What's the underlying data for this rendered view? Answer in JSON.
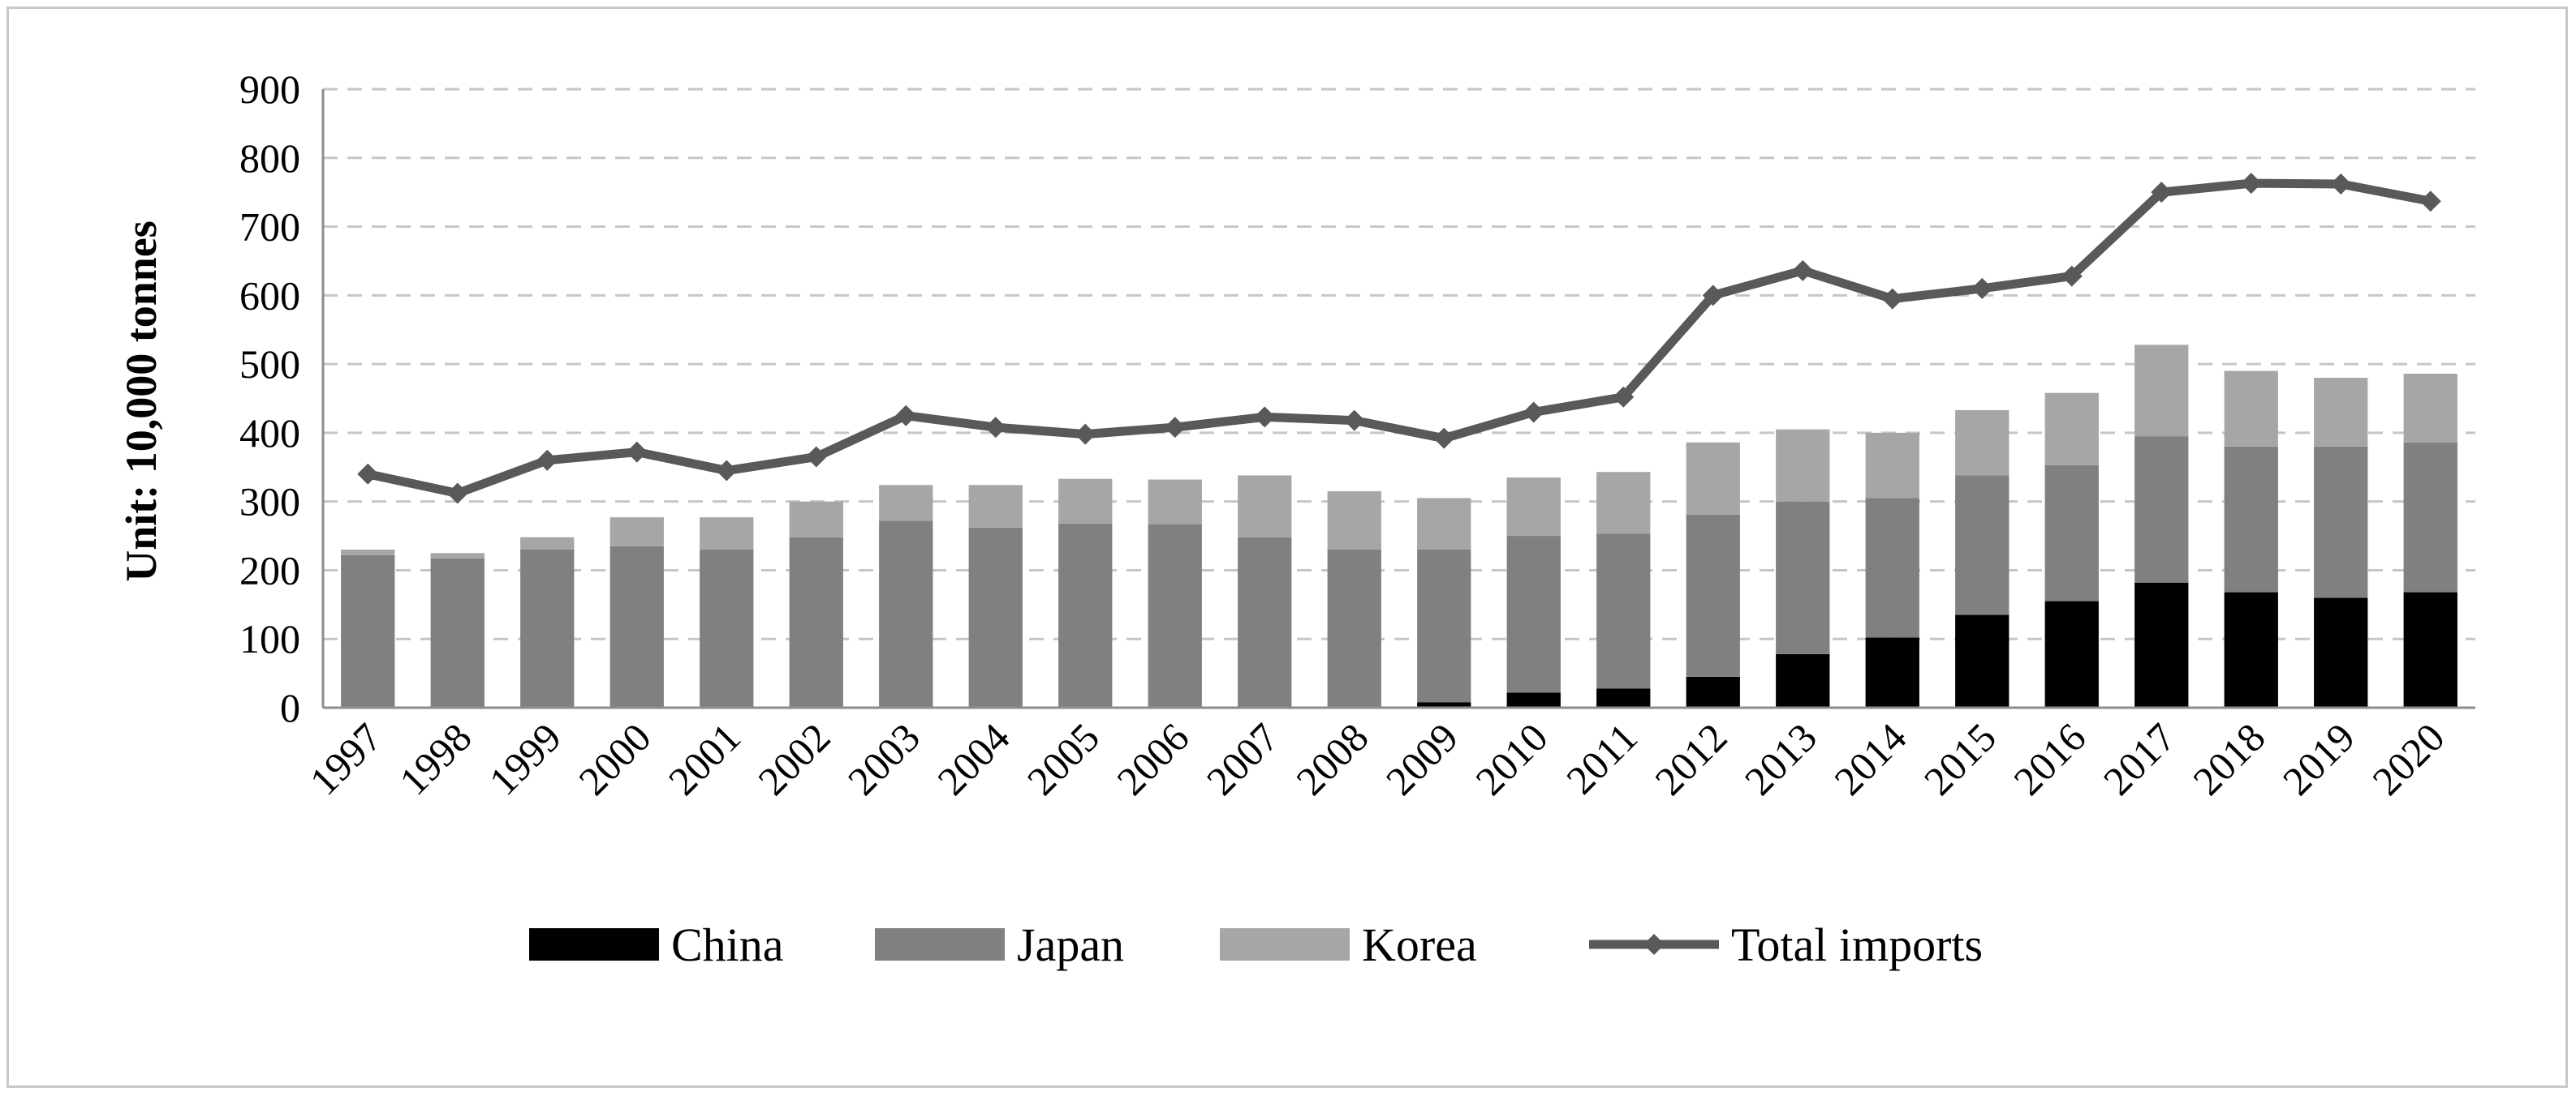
{
  "chart_data": {
    "type": "bar",
    "stacked": true,
    "categories": [
      "1997",
      "1998",
      "1999",
      "2000",
      "2001",
      "2002",
      "2003",
      "2004",
      "2005",
      "2006",
      "2007",
      "2008",
      "2009",
      "2010",
      "2011",
      "2012",
      "2013",
      "2014",
      "2015",
      "2016",
      "2017",
      "2018",
      "2019",
      "2020"
    ],
    "series": [
      {
        "name": "China",
        "kind": "bar",
        "color": "#000000",
        "values": [
          0,
          0,
          0,
          0,
          0,
          0,
          0,
          0,
          0,
          0,
          0,
          0,
          8,
          22,
          28,
          45,
          78,
          102,
          135,
          155,
          182,
          168,
          160,
          168
        ]
      },
      {
        "name": "Japan",
        "kind": "bar",
        "color": "#808080",
        "values": [
          222,
          217,
          230,
          235,
          230,
          248,
          272,
          262,
          268,
          267,
          248,
          230,
          222,
          228,
          225,
          236,
          222,
          203,
          203,
          198,
          213,
          212,
          220,
          218
        ]
      },
      {
        "name": "Korea",
        "kind": "bar",
        "color": "#a6a6a6",
        "values": [
          8,
          8,
          18,
          42,
          47,
          52,
          52,
          62,
          65,
          65,
          90,
          85,
          75,
          85,
          90,
          105,
          105,
          95,
          95,
          105,
          133,
          110,
          100,
          100
        ]
      },
      {
        "name": "Total imports",
        "kind": "line",
        "color": "#595959",
        "values": [
          340,
          312,
          360,
          372,
          345,
          365,
          425,
          408,
          398,
          408,
          423,
          418,
          392,
          430,
          452,
          600,
          636,
          595,
          610,
          628,
          750,
          763,
          762,
          737
        ]
      }
    ],
    "ylabel": "Unit: 10,000 tonnes",
    "xlabel": "",
    "title": "",
    "ylim": [
      0,
      900
    ],
    "yticks": [
      0,
      100,
      200,
      300,
      400,
      500,
      600,
      700,
      800,
      900
    ],
    "grid": "horizontal-dashed",
    "legend": "bottom"
  }
}
